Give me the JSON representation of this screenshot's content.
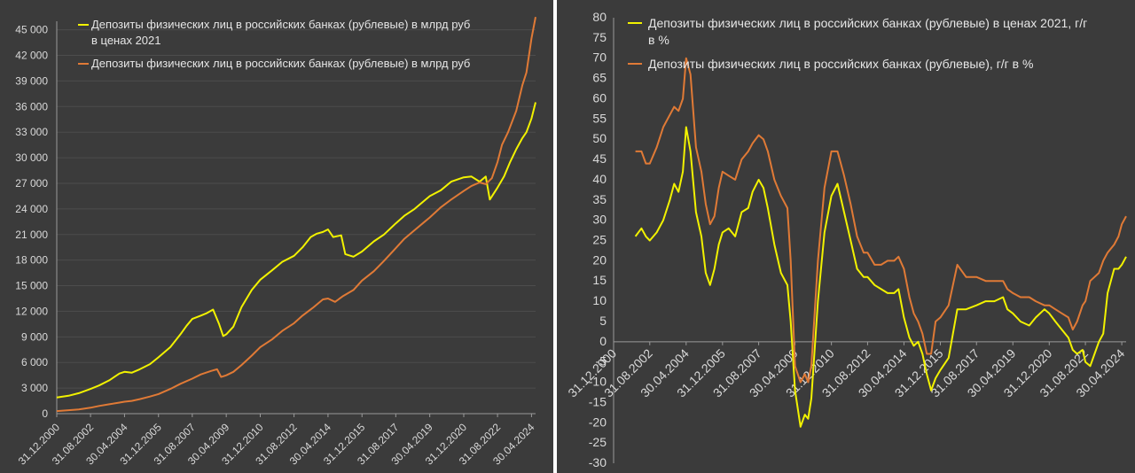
{
  "colors": {
    "yellow": "#f2f200",
    "orange": "#e07a36",
    "grid": "#4d4d4d",
    "axis": "#9a9a9a",
    "tick": "#d9d9d9"
  },
  "chart_data": [
    {
      "type": "line",
      "title": "",
      "xlabel": "",
      "ylabel": "",
      "legend_position": "top-left",
      "grid": true,
      "ylim": [
        0,
        46000
      ],
      "y_ticks": [
        0,
        3000,
        6000,
        9000,
        12000,
        15000,
        18000,
        21000,
        24000,
        27000,
        30000,
        33000,
        36000,
        39000,
        42000,
        45000
      ],
      "y_tick_labels": [
        "0",
        "3 000",
        "6 000",
        "9 000",
        "12 000",
        "15 000",
        "18 000",
        "21 000",
        "24 000",
        "27 000",
        "30 000",
        "33 000",
        "36 000",
        "39 000",
        "42 000",
        "45 000"
      ],
      "xlim": [
        2000.92,
        2024.45
      ],
      "x_tick_labels": [
        "31.12.2000",
        "31.08.2002",
        "30.04.2004",
        "31.12.2005",
        "31.08.2007",
        "30.04.2009",
        "31.12.2010",
        "31.08.2012",
        "30.04.2014",
        "31.12.2015",
        "31.08.2017",
        "30.04.2019",
        "31.12.2020",
        "31.08.2022",
        "30.04.2024"
      ],
      "x_ticks": [
        2000.92,
        2002.58,
        2004.25,
        2005.92,
        2007.58,
        2009.25,
        2010.92,
        2012.58,
        2014.25,
        2015.92,
        2017.58,
        2019.25,
        2020.92,
        2022.58,
        2024.25
      ],
      "series": [
        {
          "name": "Депозиты физических лиц в российских банках (рублевые) в млрд руб в ценах 2021",
          "color": "#f2f200",
          "x": [
            2000.92,
            2001.5,
            2002.0,
            2002.58,
            2003.0,
            2003.5,
            2004.0,
            2004.25,
            2004.6,
            2005.0,
            2005.5,
            2005.92,
            2006.5,
            2007.0,
            2007.3,
            2007.58,
            2008.0,
            2008.3,
            2008.6,
            2008.9,
            2009.1,
            2009.25,
            2009.6,
            2010.0,
            2010.5,
            2010.92,
            2011.5,
            2012.0,
            2012.58,
            2013.0,
            2013.4,
            2013.7,
            2014.0,
            2014.25,
            2014.5,
            2014.9,
            2015.1,
            2015.5,
            2015.92,
            2016.5,
            2017.0,
            2017.58,
            2018.0,
            2018.5,
            2019.0,
            2019.25,
            2019.8,
            2020.3,
            2020.92,
            2021.3,
            2021.7,
            2022.0,
            2022.2,
            2022.58,
            2022.9,
            2023.2,
            2023.5,
            2023.8,
            2024.0,
            2024.25,
            2024.45
          ],
          "y": [
            1900,
            2100,
            2400,
            2900,
            3300,
            3900,
            4700,
            4900,
            4800,
            5200,
            5800,
            6600,
            7800,
            9300,
            10300,
            11100,
            11500,
            11800,
            12200,
            10500,
            9100,
            9300,
            10200,
            12500,
            14500,
            15700,
            16800,
            17800,
            18500,
            19500,
            20700,
            21100,
            21300,
            21600,
            20700,
            20900,
            18700,
            18400,
            19000,
            20200,
            21000,
            22300,
            23200,
            24000,
            25000,
            25500,
            26200,
            27200,
            27700,
            27800,
            27200,
            27800,
            25100,
            26500,
            27800,
            29500,
            31000,
            32300,
            33000,
            34600,
            36500
          ]
        },
        {
          "name": "Депозиты физических лиц в российских банках (рублевые) в млрд руб",
          "color": "#e07a36",
          "x": [
            2000.92,
            2001.5,
            2002.0,
            2002.58,
            2003.0,
            2003.5,
            2004.0,
            2004.25,
            2004.6,
            2005.0,
            2005.5,
            2005.92,
            2006.5,
            2007.0,
            2007.58,
            2008.0,
            2008.5,
            2008.8,
            2009.0,
            2009.25,
            2009.6,
            2010.0,
            2010.5,
            2010.92,
            2011.5,
            2012.0,
            2012.58,
            2013.0,
            2013.5,
            2014.0,
            2014.25,
            2014.6,
            2015.0,
            2015.5,
            2015.92,
            2016.5,
            2017.0,
            2017.58,
            2018.0,
            2018.5,
            2019.0,
            2019.25,
            2019.8,
            2020.3,
            2020.92,
            2021.3,
            2021.7,
            2022.0,
            2022.3,
            2022.58,
            2022.8,
            2023.1,
            2023.5,
            2023.8,
            2024.0,
            2024.25,
            2024.45
          ],
          "y": [
            300,
            400,
            500,
            700,
            900,
            1100,
            1300,
            1400,
            1500,
            1700,
            2000,
            2300,
            2900,
            3500,
            4100,
            4600,
            5000,
            5200,
            4300,
            4500,
            4900,
            5700,
            6800,
            7800,
            8700,
            9700,
            10600,
            11500,
            12400,
            13400,
            13500,
            13100,
            13800,
            14500,
            15600,
            16700,
            17900,
            19400,
            20500,
            21500,
            22500,
            23000,
            24200,
            25100,
            26100,
            26700,
            27100,
            26900,
            27600,
            29500,
            31500,
            33000,
            35500,
            38500,
            40000,
            44000,
            46500
          ]
        }
      ]
    },
    {
      "type": "line",
      "title": "",
      "xlabel": "",
      "ylabel": "",
      "legend_position": "top-left",
      "grid": false,
      "ylim": [
        -30,
        80
      ],
      "y_ticks": [
        -30,
        -25,
        -20,
        -15,
        -10,
        -5,
        0,
        5,
        10,
        15,
        20,
        25,
        30,
        35,
        40,
        45,
        50,
        55,
        60,
        65,
        70,
        75,
        80
      ],
      "y_tick_labels": [
        "-30",
        "-25",
        "-20",
        "-15",
        "-10",
        "-5",
        "0",
        "5",
        "10",
        "15",
        "20",
        "25",
        "30",
        "35",
        "40",
        "45",
        "50",
        "55",
        "60",
        "65",
        "70",
        "75",
        "80"
      ],
      "xlim": [
        2000.92,
        2024.45
      ],
      "x_tick_labels": [
        "31.12.2000",
        "31.08.2002",
        "30.04.2004",
        "31.12.2005",
        "31.08.2007",
        "30.04.2009",
        "31.12.2010",
        "31.08.2012",
        "30.04.2014",
        "31.12.2015",
        "31.08.2017",
        "30.04.2019",
        "31.12.2020",
        "31.08.2022",
        "30.04.2024"
      ],
      "x_ticks": [
        2000.92,
        2002.58,
        2004.25,
        2005.92,
        2007.58,
        2009.25,
        2010.92,
        2012.58,
        2014.25,
        2015.92,
        2017.58,
        2019.25,
        2020.92,
        2022.58,
        2024.25
      ],
      "series": [
        {
          "name": "Депозиты физических лиц в российских банках (рублевые) в ценах 2021, г/г в %",
          "color": "#f2f200",
          "x": [
            2001.92,
            2002.2,
            2002.4,
            2002.58,
            2002.9,
            2003.2,
            2003.5,
            2003.7,
            2003.9,
            2004.1,
            2004.25,
            2004.45,
            2004.7,
            2004.95,
            2005.15,
            2005.35,
            2005.55,
            2005.75,
            2005.92,
            2006.2,
            2006.5,
            2006.8,
            2007.1,
            2007.3,
            2007.58,
            2007.8,
            2008.0,
            2008.3,
            2008.6,
            2008.9,
            2009.05,
            2009.25,
            2009.5,
            2009.7,
            2009.85,
            2010.0,
            2010.3,
            2010.6,
            2010.92,
            2011.2,
            2011.5,
            2011.8,
            2012.1,
            2012.4,
            2012.58,
            2012.9,
            2013.2,
            2013.5,
            2013.8,
            2014.0,
            2014.25,
            2014.5,
            2014.7,
            2014.9,
            2015.1,
            2015.3,
            2015.5,
            2015.7,
            2015.92,
            2016.3,
            2016.7,
            2017.1,
            2017.58,
            2018.0,
            2018.4,
            2018.8,
            2019.0,
            2019.25,
            2019.6,
            2020.0,
            2020.3,
            2020.7,
            2020.92,
            2021.2,
            2021.5,
            2021.8,
            2022.0,
            2022.2,
            2022.45,
            2022.58,
            2022.8,
            2023.0,
            2023.2,
            2023.4,
            2023.6,
            2023.9,
            2024.1,
            2024.25,
            2024.45
          ],
          "y": [
            26,
            28,
            26,
            25,
            27,
            30,
            35,
            39,
            37,
            42,
            53,
            47,
            32,
            26,
            17,
            14,
            18,
            24,
            27,
            28,
            26,
            32,
            33,
            37,
            40,
            38,
            33,
            24,
            17,
            14,
            5,
            -12,
            -21,
            -18,
            -19,
            -14,
            10,
            27,
            36,
            39,
            32,
            25,
            18,
            16,
            16,
            14,
            13,
            12,
            12,
            13,
            6,
            1,
            -1,
            0,
            -3,
            -8,
            -12,
            -9,
            -7,
            -4,
            8,
            8,
            9,
            10,
            10,
            11,
            8,
            7,
            5,
            4,
            6,
            8,
            7,
            5,
            3,
            1,
            -2,
            -3,
            -2,
            -5,
            -6,
            -3,
            0,
            2,
            12,
            18,
            18,
            19,
            21
          ]
        },
        {
          "name": "Депозиты физических лиц в российских банках (рублевые), г/г в %",
          "color": "#e07a36",
          "x": [
            2001.92,
            2002.2,
            2002.4,
            2002.58,
            2002.9,
            2003.2,
            2003.5,
            2003.7,
            2003.9,
            2004.1,
            2004.25,
            2004.45,
            2004.7,
            2004.95,
            2005.15,
            2005.35,
            2005.55,
            2005.75,
            2005.92,
            2006.2,
            2006.5,
            2006.8,
            2007.1,
            2007.3,
            2007.58,
            2007.8,
            2008.0,
            2008.3,
            2008.6,
            2008.9,
            2009.05,
            2009.25,
            2009.5,
            2009.7,
            2009.85,
            2010.0,
            2010.3,
            2010.6,
            2010.92,
            2011.2,
            2011.5,
            2011.8,
            2012.1,
            2012.4,
            2012.58,
            2012.9,
            2013.2,
            2013.5,
            2013.8,
            2014.0,
            2014.25,
            2014.5,
            2014.7,
            2014.9,
            2015.1,
            2015.3,
            2015.5,
            2015.7,
            2015.92,
            2016.3,
            2016.7,
            2017.1,
            2017.58,
            2018.0,
            2018.4,
            2018.8,
            2019.0,
            2019.25,
            2019.6,
            2020.0,
            2020.3,
            2020.7,
            2020.92,
            2021.2,
            2021.5,
            2021.8,
            2022.0,
            2022.2,
            2022.45,
            2022.58,
            2022.8,
            2023.0,
            2023.2,
            2023.4,
            2023.6,
            2023.9,
            2024.1,
            2024.25,
            2024.45
          ],
          "y": [
            47,
            47,
            44,
            44,
            48,
            53,
            56,
            58,
            57,
            60,
            70,
            66,
            48,
            42,
            34,
            29,
            31,
            38,
            42,
            41,
            40,
            45,
            47,
            49,
            51,
            50,
            47,
            40,
            36,
            33,
            20,
            -6,
            -10,
            -8,
            -10,
            -6,
            20,
            38,
            47,
            47,
            41,
            34,
            26,
            22,
            22,
            19,
            19,
            20,
            20,
            21,
            18,
            11,
            7,
            5,
            2,
            -3,
            -3,
            5,
            6,
            9,
            19,
            16,
            16,
            15,
            15,
            15,
            13,
            12,
            11,
            11,
            10,
            9,
            9,
            8,
            7,
            6,
            3,
            5,
            9,
            10,
            15,
            16,
            17,
            20,
            22,
            24,
            26,
            29,
            31
          ]
        }
      ]
    }
  ],
  "legend_left": {
    "line1": "Депозиты физических лиц в российских банках (рублевые) в млрд руб",
    "line1b": "в ценах 2021",
    "line2": "Депозиты физических лиц в российских банках (рублевые) в млрд руб"
  },
  "legend_right": {
    "line1": "Депозиты физических лиц в российских банках (рублевые) в ценах 2021, г/г",
    "line1b": "в %",
    "line2": "Депозиты физических лиц в российских банках (рублевые), г/г в %"
  }
}
